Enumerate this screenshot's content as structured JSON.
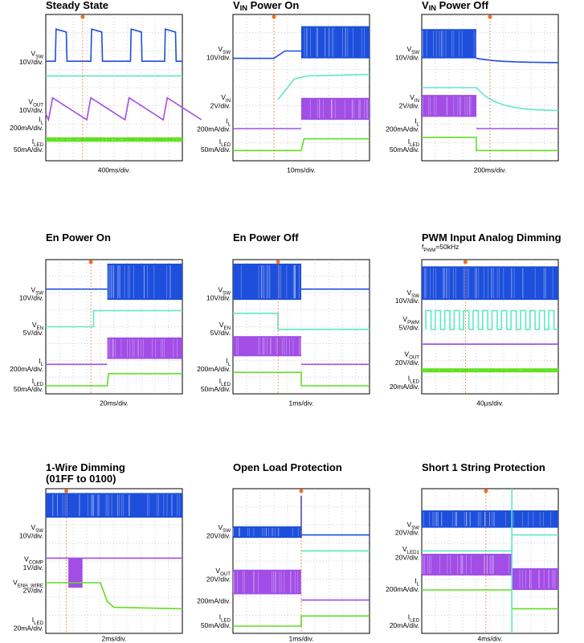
{
  "panels": [
    {
      "title": [
        "Steady State"
      ],
      "timebase": "400ms/div.",
      "channels": [
        {
          "name": [
            "V",
            "SW"
          ],
          "scale": "10V/div."
        },
        {
          "name": [
            "V",
            "OUT"
          ],
          "scale": "10V/div."
        },
        {
          "name": [
            "I",
            "L"
          ],
          "scale": "200mA/div."
        },
        {
          "name": [
            "I",
            "LED"
          ],
          "scale": "50mA/div."
        }
      ]
    },
    {
      "title": [
        "V",
        "IN",
        " Power On"
      ],
      "timebase": "10ms/div.",
      "channels": [
        {
          "name": [
            "V",
            "SW"
          ],
          "scale": "10V/div."
        },
        {
          "name": [
            "V",
            "IN"
          ],
          "scale": "2V/div."
        },
        {
          "name": [
            "I",
            "L"
          ],
          "scale": "200mA/div."
        },
        {
          "name": [
            "I",
            "LED"
          ],
          "scale": "50mA/div."
        }
      ]
    },
    {
      "title": [
        "V",
        "IN",
        " Power Off"
      ],
      "timebase": "200ms/div.",
      "channels": [
        {
          "name": [
            "V",
            "SW"
          ],
          "scale": "10V/div."
        },
        {
          "name": [
            "V",
            "IN"
          ],
          "scale": "2V/div."
        },
        {
          "name": [
            "I",
            "L"
          ],
          "scale": "200mA/div."
        },
        {
          "name": [
            "I",
            "LED"
          ],
          "scale": "50mA/div."
        }
      ]
    },
    {
      "title": [
        "En Power On"
      ],
      "timebase": "20ms/div.",
      "channels": [
        {
          "name": [
            "V",
            "SW"
          ],
          "scale": "10V/div."
        },
        {
          "name": [
            "V",
            "EN"
          ],
          "scale": "5V/div."
        },
        {
          "name": [
            "I",
            "L"
          ],
          "scale": "200mA/div."
        },
        {
          "name": [
            "I",
            "LED"
          ],
          "scale": "50mA/div."
        }
      ]
    },
    {
      "title": [
        "En Power Off"
      ],
      "timebase": "1ms/div.",
      "channels": [
        {
          "name": [
            "V",
            "SW"
          ],
          "scale": "10V/div."
        },
        {
          "name": [
            "V",
            "EN"
          ],
          "scale": "5V/div."
        },
        {
          "name": [
            "I",
            "L"
          ],
          "scale": "200mA/div."
        },
        {
          "name": [
            "I",
            "LED"
          ],
          "scale": "50mA/div."
        }
      ]
    },
    {
      "title": [
        "PWM Input Analog Dimming"
      ],
      "subtitle": [
        "f",
        "PWM",
        "=50kHz"
      ],
      "timebase": "40µs/div.",
      "channels": [
        {
          "name": [
            "V",
            "SW"
          ],
          "scale": "10V/div."
        },
        {
          "name": [
            "V",
            "PWM"
          ],
          "scale": "5V/div."
        },
        {
          "name": [
            "V",
            "OUT"
          ],
          "scale": "20V/div."
        },
        {
          "name": [
            "I",
            "LED"
          ],
          "scale": "20mA/div."
        }
      ]
    },
    {
      "title": [
        "1-Wire Dimming"
      ],
      "subtitle": [
        "(01FF to 0100)"
      ],
      "timebase": "2ms/div.",
      "channels": [
        {
          "name": [
            "V",
            "SW"
          ],
          "scale": "10V/div."
        },
        {
          "name": [
            "V",
            "COMP"
          ],
          "scale": "1V/div."
        },
        {
          "name": [
            "V",
            "ENH_WIRE"
          ],
          "scale": "2V/div."
        },
        {
          "name": [
            "I",
            "LED"
          ],
          "scale": "20mA/div."
        }
      ]
    },
    {
      "title": [
        "Open Load Protection"
      ],
      "timebase": "1ms/div.",
      "channels": [
        {
          "name": [
            "V",
            "SW"
          ],
          "scale": "20V/div."
        },
        {
          "name": [
            "V",
            "OUT"
          ],
          "scale": "20V/div."
        },
        {
          "scale": "200mA/div."
        },
        {
          "name": [
            "I",
            "LED"
          ],
          "scale": "50mA/div."
        }
      ]
    },
    {
      "title": [
        "Short 1 String Protection"
      ],
      "timebase": "4ms/div.",
      "channels": [
        {
          "name": [
            "V",
            "SW"
          ],
          "scale": "20V/div."
        },
        {
          "name": [
            "V",
            "LED1"
          ],
          "scale": "20V/div."
        },
        {
          "name": [
            "I",
            "L"
          ],
          "scale": "200mA/div."
        },
        {
          "name": [
            "I",
            "LED"
          ],
          "scale": "20mA/div."
        }
      ]
    }
  ]
}
